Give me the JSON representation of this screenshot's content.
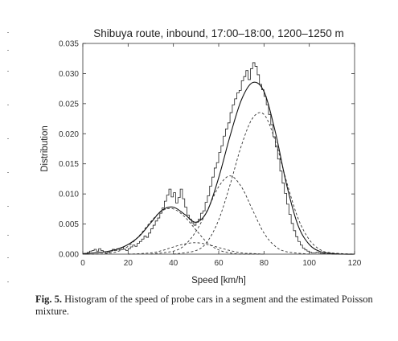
{
  "caption": {
    "label": "Fig. 5.",
    "text": " Histogram of the speed of probe cars in a segment and the estimated Poisson mixture."
  },
  "chart_data": {
    "type": "histogram",
    "title": "Shibuya route, inbound, 17:00–18:00, 1200–1250 m",
    "xlabel": "Speed [km/h]",
    "ylabel": "Distribution",
    "xlim": [
      0,
      120
    ],
    "ylim": [
      0,
      0.035
    ],
    "xticks": [
      "0",
      "20",
      "40",
      "60",
      "80",
      "100",
      "120"
    ],
    "yticks": [
      "0.000",
      "0.005",
      "0.010",
      "0.015",
      "0.020",
      "0.025",
      "0.030",
      "0.035"
    ],
    "grid": false,
    "histogram": {
      "bin_width": 1,
      "x": [
        0,
        1,
        2,
        3,
        4,
        5,
        6,
        7,
        8,
        9,
        10,
        11,
        12,
        13,
        14,
        15,
        16,
        17,
        18,
        19,
        20,
        21,
        22,
        23,
        24,
        25,
        26,
        27,
        28,
        29,
        30,
        31,
        32,
        33,
        34,
        35,
        36,
        37,
        38,
        39,
        40,
        41,
        42,
        43,
        44,
        45,
        46,
        47,
        48,
        49,
        50,
        51,
        52,
        53,
        54,
        55,
        56,
        57,
        58,
        59,
        60,
        61,
        62,
        63,
        64,
        65,
        66,
        67,
        68,
        69,
        70,
        71,
        72,
        73,
        74,
        75,
        76,
        77,
        78,
        79,
        80,
        81,
        82,
        83,
        84,
        85,
        86,
        87,
        88,
        89,
        90,
        91,
        92,
        93,
        94,
        95,
        96,
        97,
        98,
        99,
        100,
        101,
        102,
        103,
        104,
        105,
        106,
        107,
        108,
        109,
        110,
        111,
        112,
        113,
        114,
        115
      ],
      "values": [
        0,
        0,
        0.0003,
        0.0005,
        0.0006,
        0.0008,
        0.0005,
        0.0009,
        0.0006,
        0.0004,
        0.0002,
        0.0003,
        0.0005,
        0.0008,
        0.0006,
        0.0009,
        0.0007,
        0.0011,
        0.0008,
        0.0006,
        0.0009,
        0.0012,
        0.0015,
        0.0013,
        0.0018,
        0.0021,
        0.0025,
        0.003,
        0.0028,
        0.0035,
        0.0042,
        0.0048,
        0.0055,
        0.006,
        0.0068,
        0.0077,
        0.0088,
        0.0098,
        0.0108,
        0.0095,
        0.0102,
        0.0085,
        0.0094,
        0.0108,
        0.0092,
        0.0078,
        0.0065,
        0.0058,
        0.0052,
        0.0048,
        0.0053,
        0.0058,
        0.0068,
        0.0072,
        0.0086,
        0.0097,
        0.0113,
        0.0128,
        0.0143,
        0.0152,
        0.0169,
        0.018,
        0.0196,
        0.0208,
        0.0218,
        0.0235,
        0.0248,
        0.0258,
        0.0268,
        0.0272,
        0.0288,
        0.0295,
        0.0305,
        0.029,
        0.0308,
        0.0318,
        0.0312,
        0.0298,
        0.0282,
        0.0273,
        0.0262,
        0.0248,
        0.0232,
        0.0215,
        0.0195,
        0.0178,
        0.0158,
        0.0138,
        0.0118,
        0.0101,
        0.0083,
        0.0066,
        0.0051,
        0.0039,
        0.0029,
        0.0021,
        0.0015,
        0.001,
        0.0007,
        0.0005,
        0.0003,
        0.0002,
        0.0002,
        0.0003,
        0.0002,
        0.0001,
        0.0001,
        0.0002,
        0.0001,
        0.0001,
        0,
        0,
        0.0001,
        0,
        0,
        0
      ]
    },
    "mixture_total": {
      "style": "solid",
      "x": [
        0,
        5,
        10,
        15,
        20,
        25,
        30,
        35,
        40,
        45,
        50,
        55,
        60,
        65,
        70,
        75,
        80,
        85,
        90,
        95,
        100,
        105,
        110,
        115,
        120
      ],
      "y": [
        0.0001,
        0.0002,
        0.0004,
        0.0008,
        0.0016,
        0.003,
        0.0052,
        0.0073,
        0.0078,
        0.0066,
        0.0053,
        0.0072,
        0.0127,
        0.0196,
        0.0256,
        0.0285,
        0.027,
        0.0203,
        0.0115,
        0.0048,
        0.0016,
        0.0004,
        0.0001,
        0,
        0
      ]
    },
    "components": [
      {
        "style": "dashed",
        "x": [
          0,
          5,
          10,
          15,
          20,
          25,
          30,
          35,
          40,
          45,
          50,
          55,
          60,
          65,
          70,
          75,
          80
        ],
        "y": [
          0,
          0,
          0.0001,
          0.0004,
          0.0013,
          0.0031,
          0.0054,
          0.0072,
          0.0075,
          0.0062,
          0.004,
          0.0019,
          0.0007,
          0.0002,
          0,
          0,
          0
        ]
      },
      {
        "style": "dashed",
        "x": [
          20,
          30,
          35,
          40,
          45,
          50,
          55,
          60,
          65,
          70,
          75,
          80
        ],
        "y": [
          0,
          0.0002,
          0.0006,
          0.0012,
          0.0017,
          0.0019,
          0.0016,
          0.0011,
          0.0006,
          0.0002,
          0.0001,
          0
        ]
      },
      {
        "style": "dashed",
        "x": [
          30,
          40,
          45,
          50,
          55,
          60,
          65,
          70,
          75,
          80,
          85,
          90,
          100
        ],
        "y": [
          0,
          0.0005,
          0.0015,
          0.0038,
          0.0073,
          0.0112,
          0.013,
          0.0112,
          0.0073,
          0.0035,
          0.0013,
          0.0004,
          0
        ]
      },
      {
        "style": "dashed",
        "x": [
          40,
          50,
          55,
          60,
          65,
          70,
          75,
          80,
          85,
          90,
          95,
          100,
          105,
          110,
          120
        ],
        "y": [
          0,
          0.0006,
          0.0021,
          0.0057,
          0.0115,
          0.018,
          0.0226,
          0.0232,
          0.0188,
          0.012,
          0.006,
          0.0024,
          0.0007,
          0.0002,
          0
        ]
      }
    ]
  }
}
